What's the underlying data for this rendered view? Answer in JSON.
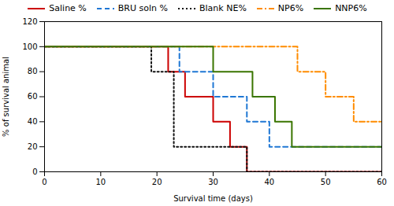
{
  "chart_data": {
    "type": "line",
    "xlabel": "Survival time (days)",
    "ylabel": "% of survival animal",
    "xlim": [
      0,
      60
    ],
    "ylim": [
      0,
      120
    ],
    "xticks": [
      0,
      10,
      20,
      30,
      40,
      50,
      60
    ],
    "yticks": [
      0,
      20,
      40,
      60,
      80,
      100,
      120
    ],
    "grid": false,
    "legend": "top",
    "series": [
      {
        "name": "Saline %",
        "color": "#cc0000",
        "line_style": "solid",
        "x": [
          0,
          22,
          22,
          25,
          25,
          30,
          30,
          33,
          33,
          36,
          36,
          60
        ],
        "values": [
          100,
          100,
          80,
          80,
          60,
          60,
          40,
          40,
          20,
          20,
          0,
          0
        ]
      },
      {
        "name": "BRU soln %",
        "color": "#1f77d4",
        "line_style": "dashed",
        "x": [
          0,
          24,
          24,
          30,
          30,
          36,
          36,
          40,
          40,
          60
        ],
        "values": [
          100,
          100,
          80,
          80,
          60,
          60,
          40,
          40,
          20,
          20
        ]
      },
      {
        "name": "Blank NE%",
        "color": "#111111",
        "line_style": "dotted",
        "x": [
          0,
          19,
          19,
          23,
          23,
          33,
          33,
          36,
          36,
          60
        ],
        "values": [
          100,
          100,
          80,
          80,
          20,
          20,
          20,
          20,
          0,
          0
        ]
      },
      {
        "name": "NP6%",
        "color": "#ff8c00",
        "line_style": "dashdot",
        "x": [
          0,
          40,
          40,
          45,
          45,
          50,
          50,
          55,
          55,
          60
        ],
        "values": [
          100,
          100,
          100,
          100,
          80,
          80,
          60,
          60,
          40,
          40
        ]
      },
      {
        "name": "NNP6%",
        "color": "#3a7500",
        "line_style": "solid",
        "x": [
          0,
          30,
          30,
          37,
          37,
          41,
          41,
          44,
          44,
          60
        ],
        "values": [
          100,
          100,
          80,
          80,
          60,
          60,
          40,
          40,
          20,
          20
        ]
      }
    ]
  }
}
